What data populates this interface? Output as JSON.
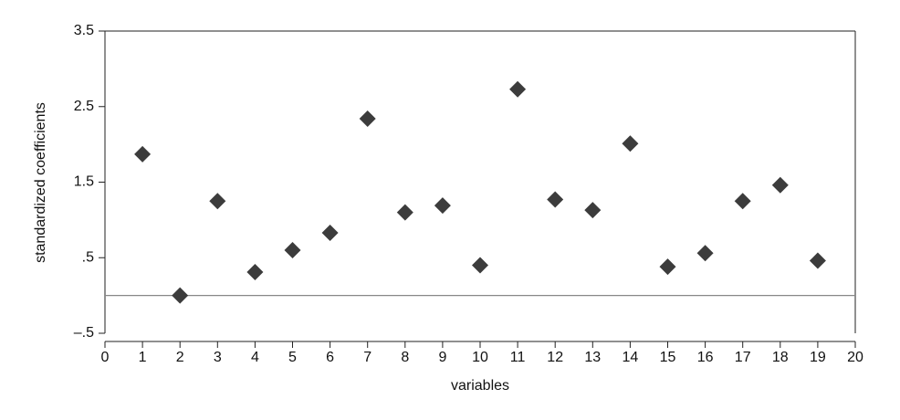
{
  "chart_data": {
    "type": "scatter",
    "xlabel": "variables",
    "ylabel": "standardized coefficients",
    "x": [
      1,
      2,
      3,
      4,
      5,
      6,
      7,
      8,
      9,
      10,
      11,
      12,
      13,
      14,
      15,
      16,
      17,
      18,
      19
    ],
    "series": [
      {
        "color": "#3c3c3c",
        "values": [
          1.87,
          0.0,
          1.25,
          0.31,
          0.6,
          0.83,
          2.34,
          1.1,
          1.19,
          0.4,
          2.73,
          1.27,
          1.13,
          2.01,
          0.38,
          0.56,
          1.25,
          1.46,
          0.46
        ]
      }
    ],
    "xlim": [
      0,
      20
    ],
    "xticks": [
      0,
      1,
      2,
      3,
      4,
      5,
      6,
      7,
      8,
      9,
      10,
      11,
      12,
      13,
      14,
      15,
      16,
      17,
      18,
      19,
      20
    ],
    "ylim": [
      -0.5,
      3.5
    ],
    "yticks": [
      {
        "value": -0.5,
        "label": "–.5"
      },
      {
        "value": 0.5,
        "label": ".5"
      },
      1.5,
      2.5,
      3.5
    ],
    "reference_line": 0
  }
}
